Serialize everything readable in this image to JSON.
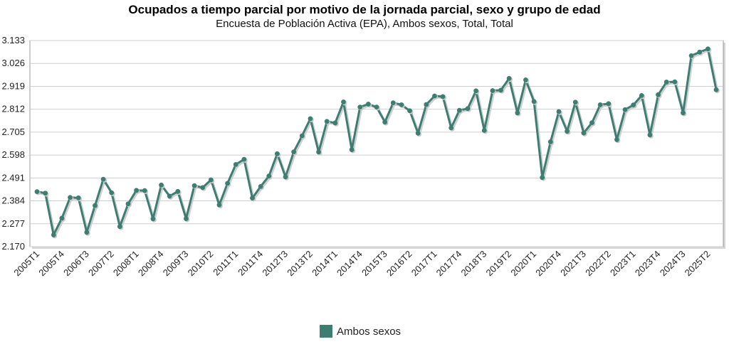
{
  "chart_data": {
    "type": "line",
    "title": "Ocupados a tiempo parcial por motivo de la jornada parcial, sexo y grupo de edad",
    "subtitle": "Encuesta de Población Activa (EPA), Ambos sexos, Total, Total",
    "xlabel": "",
    "ylabel": "",
    "ylim": [
      2.17,
      3.133
    ],
    "yticks": [
      "3.133",
      "3.026",
      "2.919",
      "2.812",
      "2.705",
      "2.598",
      "2.491",
      "2.384",
      "2.277",
      "2.170"
    ],
    "xticks": [
      "2005T1",
      "2005T4",
      "2006T3",
      "2007T2",
      "2008T1",
      "2008T4",
      "2009T3",
      "2010T2",
      "2011T1",
      "2011T4",
      "2012T3",
      "2013T2",
      "2014T1",
      "2014T4",
      "2015T3",
      "2016T2",
      "2017T1",
      "2017T4",
      "2018T3",
      "2019T2",
      "2020T1",
      "2020T4",
      "2021T3",
      "2022T2",
      "2023T1",
      "2023T4",
      "2024T3",
      "2025T2"
    ],
    "categories": [
      "2005T1",
      "2005T2",
      "2005T3",
      "2005T4",
      "2006T1",
      "2006T2",
      "2006T3",
      "2006T4",
      "2007T1",
      "2007T2",
      "2007T3",
      "2007T4",
      "2008T1",
      "2008T2",
      "2008T3",
      "2008T4",
      "2009T1",
      "2009T2",
      "2009T3",
      "2009T4",
      "2010T1",
      "2010T2",
      "2010T3",
      "2010T4",
      "2011T1",
      "2011T2",
      "2011T3",
      "2011T4",
      "2012T1",
      "2012T2",
      "2012T3",
      "2012T4",
      "2013T1",
      "2013T2",
      "2013T3",
      "2013T4",
      "2014T1",
      "2014T2",
      "2014T3",
      "2014T4",
      "2015T1",
      "2015T2",
      "2015T3",
      "2015T4",
      "2016T1",
      "2016T2",
      "2016T3",
      "2016T4",
      "2017T1",
      "2017T2",
      "2017T3",
      "2017T4",
      "2018T1",
      "2018T2",
      "2018T3",
      "2018T4",
      "2019T1",
      "2019T2",
      "2019T3",
      "2019T4",
      "2020T1",
      "2020T2",
      "2020T3",
      "2020T4",
      "2021T1",
      "2021T2",
      "2021T3",
      "2021T4",
      "2022T1",
      "2022T2",
      "2022T3",
      "2022T4",
      "2023T1",
      "2023T2",
      "2023T3",
      "2023T4",
      "2024T1",
      "2024T2",
      "2024T3",
      "2024T4",
      "2025T1",
      "2025T2",
      "2025T3"
    ],
    "series": [
      {
        "name": "Ambos sexos",
        "color": "#3e7d72",
        "values": [
          2.427,
          2.42,
          2.225,
          2.303,
          2.4,
          2.398,
          2.237,
          2.362,
          2.485,
          2.422,
          2.264,
          2.37,
          2.433,
          2.432,
          2.3,
          2.458,
          2.406,
          2.428,
          2.301,
          2.455,
          2.446,
          2.482,
          2.365,
          2.466,
          2.554,
          2.578,
          2.397,
          2.451,
          2.5,
          2.604,
          2.496,
          2.613,
          2.688,
          2.768,
          2.612,
          2.755,
          2.748,
          2.846,
          2.623,
          2.822,
          2.836,
          2.822,
          2.752,
          2.842,
          2.833,
          2.805,
          2.7,
          2.834,
          2.874,
          2.871,
          2.725,
          2.807,
          2.815,
          2.898,
          2.713,
          2.899,
          2.901,
          2.956,
          2.795,
          2.949,
          2.848,
          2.493,
          2.66,
          2.801,
          2.709,
          2.845,
          2.701,
          2.749,
          2.833,
          2.838,
          2.67,
          2.81,
          2.832,
          2.876,
          2.692,
          2.88,
          2.939,
          2.94,
          2.795,
          3.062,
          3.079,
          3.094,
          2.903
        ]
      }
    ],
    "legend": "bottom-center"
  }
}
